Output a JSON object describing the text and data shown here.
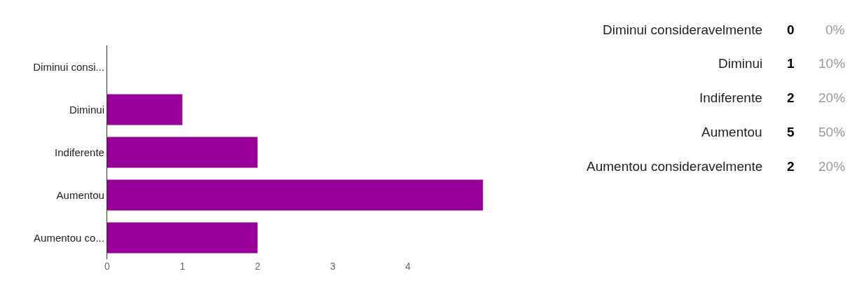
{
  "chart_data": [
    {
      "type": "bar",
      "orientation": "horizontal",
      "categories": [
        "Diminui consi...",
        "Diminui",
        "Indiferente",
        "Aumentou",
        "Aumentou co..."
      ],
      "values": [
        0,
        1,
        2,
        5,
        2
      ],
      "color": "#990099",
      "xlim": [
        0,
        5
      ],
      "xticks": [
        0,
        1,
        2,
        3,
        4
      ],
      "grid": false
    },
    {
      "type": "other",
      "categories": [
        "Diminui consideravelmente",
        "Diminui",
        "Indiferente",
        "Aumentou",
        "Aumentou consideravelmente"
      ],
      "values": [
        0,
        1,
        2,
        5,
        2
      ],
      "data_labels": true,
      "annotations": [
        "0%",
        "10%",
        "20%",
        "50%",
        "20%"
      ]
    }
  ]
}
